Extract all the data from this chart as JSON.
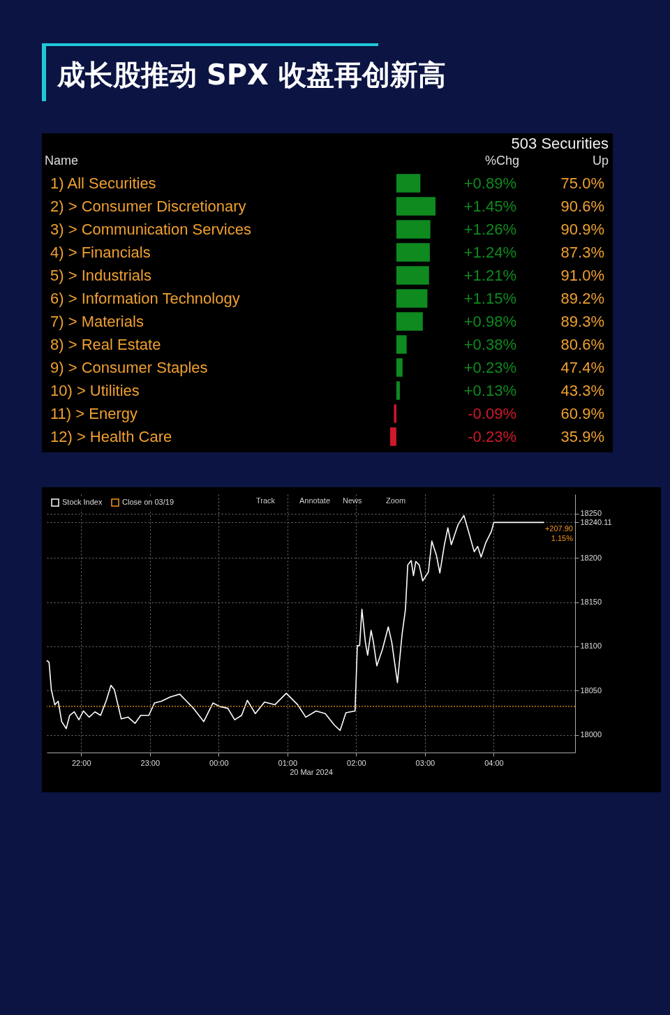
{
  "chart_data": [
    {
      "type": "bar",
      "orientation": "horizontal",
      "title": "成长股推动 SPX 收盘再创新高",
      "annotations": [
        "503 Securities",
        "Name",
        "Up",
        "75.0%",
        "90.6%",
        "90.9%",
        "87.3%",
        "91.0%",
        "89.2%",
        "89.3%",
        "80.6%",
        "47.4%",
        "43.3%",
        "60.9%",
        "35.9%"
      ],
      "categories": [
        "1) All Securities",
        "2) > Consumer Discretionary",
        "3) > Communication Services",
        "4) > Financials",
        "5) > Industrials",
        "6) > Information Technology",
        "7) > Materials",
        "8) > Real Estate",
        "9) > Consumer Staples",
        "10) > Utilities",
        "11) > Energy",
        "12) > Health Care"
      ],
      "series": [
        {
          "name": "%Chg",
          "colors": [
            "#0f8a1f",
            "#0f8a1f",
            "#0f8a1f",
            "#0f8a1f",
            "#0f8a1f",
            "#0f8a1f",
            "#0f8a1f",
            "#0f8a1f",
            "#0f8a1f",
            "#0f8a1f",
            "#d0182a",
            "#d0182a"
          ],
          "values": [
            0.89,
            1.45,
            1.26,
            1.24,
            1.21,
            1.15,
            0.98,
            0.38,
            0.23,
            0.13,
            -0.09,
            -0.23
          ],
          "value_labels": [
            "+0.89%",
            "+1.45%",
            "+1.26%",
            "+1.24%",
            "+1.21%",
            "+1.15%",
            "+0.98%",
            "+0.38%",
            "+0.23%",
            "+0.13%",
            "-0.09%",
            "-0.23%"
          ]
        }
      ]
    },
    {
      "type": "line",
      "legend": "top left",
      "grid": true,
      "xlabel": "20 Mar 2024",
      "x": [
        "2024-03-19T21:30",
        "2024-03-19T21:32",
        "2024-03-19T21:34",
        "2024-03-19T21:37",
        "2024-03-19T21:40",
        "2024-03-19T21:43",
        "2024-03-19T21:47",
        "2024-03-19T21:50",
        "2024-03-19T21:54",
        "2024-03-19T21:58",
        "2024-03-19T22:02",
        "2024-03-19T22:07",
        "2024-03-19T22:12",
        "2024-03-19T22:17",
        "2024-03-19T22:22",
        "2024-03-19T22:26",
        "2024-03-19T22:29",
        "2024-03-19T22:35",
        "2024-03-19T22:41",
        "2024-03-19T22:47",
        "2024-03-19T22:52",
        "2024-03-19T22:59",
        "2024-03-19T23:04",
        "2024-03-19T23:10",
        "2024-03-19T23:18",
        "2024-03-19T23:26",
        "2024-03-19T23:32",
        "2024-03-19T23:38",
        "2024-03-19T23:47",
        "2024-03-19T23:55",
        "2024-03-20T00:01",
        "2024-03-20T00:08",
        "2024-03-20T00:14",
        "2024-03-20T00:20",
        "2024-03-20T00:25",
        "2024-03-20T00:32",
        "2024-03-20T00:40",
        "2024-03-20T00:49",
        "2024-03-20T00:59",
        "2024-03-20T01:09",
        "2024-03-20T01:16",
        "2024-03-20T01:25",
        "2024-03-20T01:33",
        "2024-03-20T01:41",
        "2024-03-20T01:46",
        "2024-03-20T01:51",
        "2024-03-20T01:59",
        "2024-03-20T02:01",
        "2024-03-20T02:03",
        "2024-03-20T02:05",
        "2024-03-20T02:08",
        "2024-03-20T02:10",
        "2024-03-20T02:13",
        "2024-03-20T02:15",
        "2024-03-20T02:18",
        "2024-03-20T02:23",
        "2024-03-20T02:28",
        "2024-03-20T02:31",
        "2024-03-20T02:36",
        "2024-03-20T02:40",
        "2024-03-20T02:43",
        "2024-03-20T02:45",
        "2024-03-20T02:48",
        "2024-03-20T02:50",
        "2024-03-20T02:52",
        "2024-03-20T02:55",
        "2024-03-20T02:58",
        "2024-03-20T03:03",
        "2024-03-20T03:06",
        "2024-03-20T03:10",
        "2024-03-20T03:13",
        "2024-03-20T03:17",
        "2024-03-20T03:20",
        "2024-03-20T03:23",
        "2024-03-20T03:29",
        "2024-03-20T03:34",
        "2024-03-20T03:38",
        "2024-03-20T03:43",
        "2024-03-20T03:46",
        "2024-03-20T03:49",
        "2024-03-20T03:53",
        "2024-03-20T03:58",
        "2024-03-20T04:00",
        "2024-03-20T04:44"
      ],
      "series": [
        {
          "name": "Stock Index",
          "color": "#ffffff",
          "values": [
            18084,
            18082,
            18051,
            18034,
            18038,
            18015,
            18007,
            18022,
            18026,
            18017,
            18027,
            18020,
            18026,
            18022,
            18039,
            18056,
            18051,
            18018,
            18020,
            18013,
            18022,
            18022,
            18036,
            18038,
            18043,
            18046,
            18038,
            18030,
            18015,
            18036,
            18032,
            18030,
            18017,
            18022,
            18039,
            18024,
            18037,
            18034,
            18047,
            18034,
            18020,
            18027,
            18024,
            18011,
            18005,
            18025,
            18027,
            18101,
            18101,
            18142,
            18105,
            18090,
            18118,
            18105,
            18078,
            18097,
            18122,
            18105,
            18059,
            18113,
            18142,
            18192,
            18197,
            18180,
            18196,
            18192,
            18174,
            18184,
            18219,
            18203,
            18183,
            18215,
            18234,
            18215,
            18238,
            18248,
            18230,
            18207,
            18213,
            18201,
            18217,
            18230,
            18240.11,
            18240.11
          ]
        }
      ],
      "xlim": [
        "2024-03-19T21:30",
        "2024-03-20T05:11"
      ],
      "xticks": [
        {
          "value": "2024-03-19T22:00",
          "label": "22:00"
        },
        {
          "value": "2024-03-19T23:00",
          "label": "23:00"
        },
        {
          "value": "2024-03-20T00:00",
          "label": "00:00"
        },
        {
          "value": "2024-03-20T01:00",
          "label": "01:00"
        },
        {
          "value": "2024-03-20T02:00",
          "label": "02:00"
        },
        {
          "value": "2024-03-20T03:00",
          "label": "03:00"
        },
        {
          "value": "2024-03-20T04:00",
          "label": "04:00"
        }
      ],
      "ylim": [
        17980,
        18272
      ],
      "yticks": [
        18000,
        18050,
        18100,
        18150,
        18200,
        18240.11,
        18250
      ],
      "ref_lines": [
        {
          "axis": "y",
          "value": 18032.21,
          "label": "Close on 03/19",
          "color": "#f7941d",
          "line_style": "dotted"
        }
      ],
      "annotations": [
        "Track",
        "Annotate",
        "News",
        "Zoom",
        "+207.90",
        "1.15%"
      ]
    }
  ]
}
